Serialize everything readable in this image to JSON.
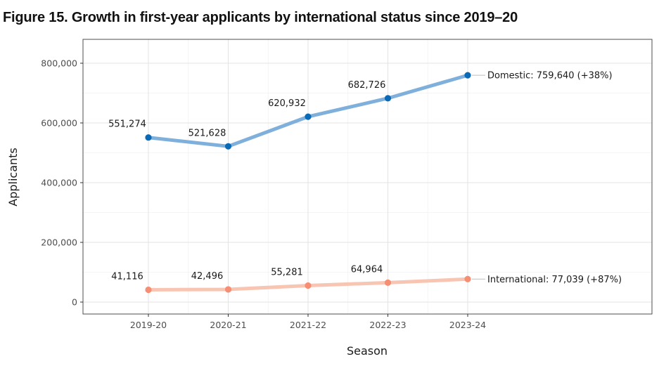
{
  "figure": {
    "title": "Figure 15. Growth in first-year applicants by international status since 2019–20"
  },
  "chart_data": {
    "type": "line",
    "xlabel": "Season",
    "ylabel": "Applicants",
    "categories": [
      "2019-20",
      "2020-21",
      "2021-22",
      "2022-23",
      "2023-24"
    ],
    "ylim": [
      -40000,
      880000
    ],
    "yticks": [
      0,
      200000,
      400000,
      600000,
      800000
    ],
    "ytick_labels": [
      "0",
      "200,000",
      "400,000",
      "600,000",
      "800,000"
    ],
    "grid": true,
    "legend": "none",
    "series": [
      {
        "values": [
          551274,
          521628,
          620932,
          682726,
          759640
        ],
        "data_labels": [
          "551,274",
          "521,628",
          "620,932",
          "682,726"
        ],
        "end_label": "Domestic: 759,640 (+38%)",
        "line_color": "#7fb0dc",
        "point_color": "#0a6ab6"
      },
      {
        "values": [
          41116,
          42496,
          55281,
          64964,
          77039
        ],
        "data_labels": [
          "41,116",
          "42,496",
          "55,281",
          "64,964"
        ],
        "end_label": "International: 77,039 (+87%)",
        "line_color": "#f8c5b3",
        "point_color": "#f58e73"
      }
    ]
  }
}
